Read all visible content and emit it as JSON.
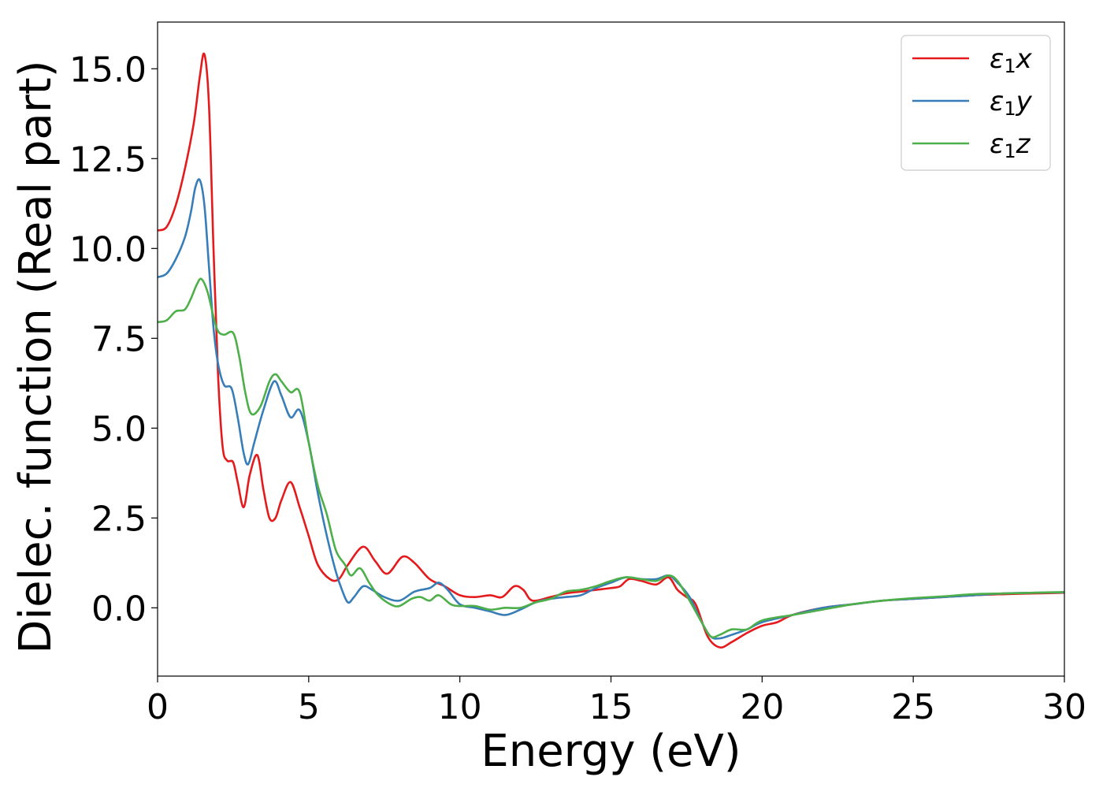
{
  "chart_data": {
    "type": "line",
    "xlabel": "Energy (eV)",
    "ylabel": "Dielec. function (Real part)",
    "xlim": [
      0,
      30
    ],
    "ylim": [
      -1.9,
      16.3
    ],
    "x_ticks": [
      0,
      5,
      10,
      15,
      20,
      25,
      30
    ],
    "x_tick_labels": [
      "0",
      "5",
      "10",
      "15",
      "20",
      "25",
      "30"
    ],
    "y_ticks": [
      0.0,
      2.5,
      5.0,
      7.5,
      10.0,
      12.5,
      15.0
    ],
    "y_tick_labels": [
      "0.0",
      "2.5",
      "5.0",
      "7.5",
      "10.0",
      "12.5",
      "15.0"
    ],
    "grid": false,
    "legend_position": "top-right",
    "series": [
      {
        "name": "ε1x",
        "legend_base": "ε",
        "legend_sub": "1",
        "legend_var": "x",
        "color": "#e41a1c",
        "points": [
          [
            0,
            10.5
          ],
          [
            0.3,
            10.6
          ],
          [
            0.6,
            11.2
          ],
          [
            0.9,
            12.2
          ],
          [
            1.2,
            13.5
          ],
          [
            1.4,
            14.8
          ],
          [
            1.55,
            15.4
          ],
          [
            1.7,
            14.0
          ],
          [
            1.85,
            10.0
          ],
          [
            2.0,
            6.5
          ],
          [
            2.15,
            4.5
          ],
          [
            2.3,
            4.1
          ],
          [
            2.5,
            4.05
          ],
          [
            2.65,
            3.5
          ],
          [
            2.85,
            2.8
          ],
          [
            3.05,
            3.7
          ],
          [
            3.3,
            4.25
          ],
          [
            3.5,
            3.3
          ],
          [
            3.7,
            2.5
          ],
          [
            3.9,
            2.5
          ],
          [
            4.1,
            3.0
          ],
          [
            4.4,
            3.5
          ],
          [
            4.7,
            2.8
          ],
          [
            5.0,
            2.0
          ],
          [
            5.3,
            1.2
          ],
          [
            5.7,
            0.8
          ],
          [
            6.0,
            0.8
          ],
          [
            6.3,
            1.2
          ],
          [
            6.8,
            1.7
          ],
          [
            7.2,
            1.3
          ],
          [
            7.6,
            0.95
          ],
          [
            8.1,
            1.42
          ],
          [
            8.5,
            1.25
          ],
          [
            9.0,
            0.8
          ],
          [
            9.5,
            0.6
          ],
          [
            10.0,
            0.35
          ],
          [
            10.5,
            0.3
          ],
          [
            11.0,
            0.35
          ],
          [
            11.4,
            0.3
          ],
          [
            11.8,
            0.6
          ],
          [
            12.1,
            0.5
          ],
          [
            12.4,
            0.2
          ],
          [
            13.0,
            0.3
          ],
          [
            13.5,
            0.4
          ],
          [
            14.0,
            0.45
          ],
          [
            14.5,
            0.5
          ],
          [
            15.0,
            0.55
          ],
          [
            15.3,
            0.6
          ],
          [
            15.6,
            0.8
          ],
          [
            16.0,
            0.75
          ],
          [
            16.5,
            0.65
          ],
          [
            16.9,
            0.85
          ],
          [
            17.2,
            0.5
          ],
          [
            17.5,
            0.3
          ],
          [
            17.8,
            0.1
          ],
          [
            18.2,
            -0.8
          ],
          [
            18.6,
            -1.1
          ],
          [
            19.0,
            -0.95
          ],
          [
            19.5,
            -0.7
          ],
          [
            20.0,
            -0.5
          ],
          [
            20.5,
            -0.4
          ],
          [
            21.0,
            -0.2
          ],
          [
            22.0,
            0.0
          ],
          [
            23.0,
            0.1
          ],
          [
            24.0,
            0.2
          ],
          [
            25.0,
            0.25
          ],
          [
            26.0,
            0.3
          ],
          [
            27.0,
            0.35
          ],
          [
            28.0,
            0.38
          ],
          [
            29.0,
            0.4
          ],
          [
            30.0,
            0.42
          ]
        ]
      },
      {
        "name": "ε1y",
        "legend_base": "ε",
        "legend_sub": "1",
        "legend_var": "y",
        "color": "#377eb8",
        "points": [
          [
            0,
            9.2
          ],
          [
            0.3,
            9.3
          ],
          [
            0.6,
            9.7
          ],
          [
            0.9,
            10.3
          ],
          [
            1.1,
            11.0
          ],
          [
            1.25,
            11.7
          ],
          [
            1.4,
            11.9
          ],
          [
            1.55,
            11.2
          ],
          [
            1.7,
            9.5
          ],
          [
            1.85,
            7.8
          ],
          [
            2.0,
            6.8
          ],
          [
            2.2,
            6.2
          ],
          [
            2.45,
            6.1
          ],
          [
            2.65,
            5.3
          ],
          [
            2.85,
            4.3
          ],
          [
            3.0,
            4.0
          ],
          [
            3.2,
            4.6
          ],
          [
            3.5,
            5.5
          ],
          [
            3.85,
            6.3
          ],
          [
            4.1,
            5.9
          ],
          [
            4.4,
            5.3
          ],
          [
            4.7,
            5.5
          ],
          [
            5.0,
            4.6
          ],
          [
            5.3,
            3.2
          ],
          [
            5.6,
            2.0
          ],
          [
            5.9,
            1.0
          ],
          [
            6.1,
            0.5
          ],
          [
            6.3,
            0.15
          ],
          [
            6.5,
            0.3
          ],
          [
            6.8,
            0.6
          ],
          [
            7.1,
            0.5
          ],
          [
            7.5,
            0.3
          ],
          [
            8.0,
            0.2
          ],
          [
            8.5,
            0.45
          ],
          [
            9.0,
            0.55
          ],
          [
            9.3,
            0.7
          ],
          [
            9.6,
            0.5
          ],
          [
            10.0,
            0.1
          ],
          [
            10.5,
            0.0
          ],
          [
            11.0,
            -0.1
          ],
          [
            11.5,
            -0.2
          ],
          [
            12.0,
            -0.05
          ],
          [
            12.5,
            0.15
          ],
          [
            13.0,
            0.25
          ],
          [
            13.5,
            0.3
          ],
          [
            14.0,
            0.35
          ],
          [
            14.5,
            0.55
          ],
          [
            15.0,
            0.7
          ],
          [
            15.5,
            0.85
          ],
          [
            16.0,
            0.8
          ],
          [
            16.5,
            0.8
          ],
          [
            16.9,
            0.9
          ],
          [
            17.2,
            0.7
          ],
          [
            17.6,
            0.3
          ],
          [
            18.0,
            -0.4
          ],
          [
            18.3,
            -0.8
          ],
          [
            18.6,
            -0.85
          ],
          [
            19.0,
            -0.75
          ],
          [
            19.5,
            -0.6
          ],
          [
            20.0,
            -0.4
          ],
          [
            21.0,
            -0.2
          ],
          [
            22.0,
            0.0
          ],
          [
            23.0,
            0.1
          ],
          [
            24.0,
            0.2
          ],
          [
            25.0,
            0.25
          ],
          [
            26.0,
            0.3
          ],
          [
            27.0,
            0.35
          ],
          [
            28.0,
            0.4
          ],
          [
            29.0,
            0.42
          ],
          [
            30.0,
            0.43
          ]
        ]
      },
      {
        "name": "ε1z",
        "legend_base": "ε",
        "legend_sub": "1",
        "legend_var": "z",
        "color": "#4daf4a",
        "points": [
          [
            0,
            7.95
          ],
          [
            0.3,
            8.0
          ],
          [
            0.6,
            8.25
          ],
          [
            0.9,
            8.3
          ],
          [
            1.1,
            8.6
          ],
          [
            1.3,
            9.0
          ],
          [
            1.45,
            9.15
          ],
          [
            1.65,
            8.8
          ],
          [
            1.85,
            8.1
          ],
          [
            2.0,
            7.7
          ],
          [
            2.2,
            7.6
          ],
          [
            2.5,
            7.65
          ],
          [
            2.7,
            7.0
          ],
          [
            2.9,
            6.0
          ],
          [
            3.1,
            5.4
          ],
          [
            3.4,
            5.6
          ],
          [
            3.7,
            6.3
          ],
          [
            3.9,
            6.5
          ],
          [
            4.1,
            6.3
          ],
          [
            4.4,
            6.0
          ],
          [
            4.7,
            6.0
          ],
          [
            5.0,
            4.6
          ],
          [
            5.3,
            3.4
          ],
          [
            5.6,
            2.6
          ],
          [
            5.9,
            1.6
          ],
          [
            6.2,
            1.2
          ],
          [
            6.4,
            0.9
          ],
          [
            6.7,
            1.1
          ],
          [
            7.0,
            0.7
          ],
          [
            7.3,
            0.35
          ],
          [
            7.7,
            0.1
          ],
          [
            8.0,
            0.05
          ],
          [
            8.4,
            0.25
          ],
          [
            8.7,
            0.3
          ],
          [
            9.0,
            0.2
          ],
          [
            9.3,
            0.35
          ],
          [
            9.7,
            0.1
          ],
          [
            10.0,
            0.05
          ],
          [
            10.5,
            0.05
          ],
          [
            11.0,
            -0.05
          ],
          [
            11.5,
            0.0
          ],
          [
            12.0,
            0.0
          ],
          [
            12.5,
            0.15
          ],
          [
            13.0,
            0.25
          ],
          [
            13.5,
            0.45
          ],
          [
            14.0,
            0.5
          ],
          [
            14.5,
            0.6
          ],
          [
            15.0,
            0.75
          ],
          [
            15.5,
            0.85
          ],
          [
            16.0,
            0.8
          ],
          [
            16.5,
            0.75
          ],
          [
            16.9,
            0.9
          ],
          [
            17.2,
            0.75
          ],
          [
            17.6,
            0.2
          ],
          [
            18.0,
            -0.4
          ],
          [
            18.3,
            -0.8
          ],
          [
            18.6,
            -0.75
          ],
          [
            19.0,
            -0.6
          ],
          [
            19.5,
            -0.6
          ],
          [
            20.0,
            -0.35
          ],
          [
            21.0,
            -0.2
          ],
          [
            22.0,
            -0.05
          ],
          [
            23.0,
            0.1
          ],
          [
            24.0,
            0.2
          ],
          [
            25.0,
            0.27
          ],
          [
            26.0,
            0.32
          ],
          [
            27.0,
            0.38
          ],
          [
            28.0,
            0.4
          ],
          [
            29.0,
            0.42
          ],
          [
            30.0,
            0.44
          ]
        ]
      }
    ]
  }
}
